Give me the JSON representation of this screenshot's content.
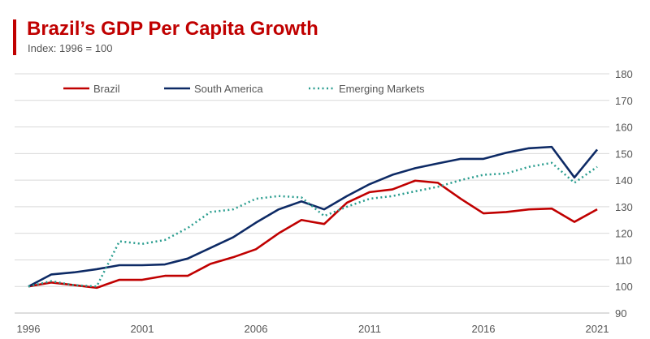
{
  "chart_data": {
    "type": "line",
    "title": "Brazil’s GDP Per Capita Growth",
    "subtitle": "Index: 1996 = 100",
    "x": [
      1996,
      1997,
      1998,
      1999,
      2000,
      2001,
      2002,
      2003,
      2004,
      2005,
      2006,
      2007,
      2008,
      2009,
      2010,
      2011,
      2012,
      2013,
      2014,
      2015,
      2016,
      2017,
      2018,
      2019,
      2020,
      2021
    ],
    "x_ticks": [
      "1996",
      "2001",
      "2006",
      "2011",
      "2016",
      "2021"
    ],
    "y_ticks": [
      "90",
      "100",
      "110",
      "120",
      "130",
      "140",
      "150",
      "160",
      "170",
      "180"
    ],
    "ylim": [
      90,
      180
    ],
    "y_axis_side": "right",
    "grid": true,
    "legend_position": "top",
    "series": [
      {
        "name": "Brazil",
        "color": "#c00000",
        "style": "solid",
        "values": [
          100,
          101.5,
          100.5,
          99.5,
          102.5,
          102.5,
          104,
          104,
          108.5,
          111,
          114,
          120,
          125,
          123.5,
          131.5,
          135.5,
          136.5,
          139.8,
          139,
          133,
          127.5,
          128,
          129,
          129.3,
          124.3,
          129
        ]
      },
      {
        "name": "South America",
        "color": "#0d2a65",
        "style": "solid",
        "values": [
          100,
          104.5,
          105.3,
          106.5,
          108,
          108,
          108.3,
          110.5,
          114.5,
          118.5,
          124,
          129,
          132,
          129,
          134,
          138.5,
          142,
          144.5,
          146.3,
          148,
          148,
          150.3,
          152,
          152.5,
          141,
          151.5
        ]
      },
      {
        "name": "Emerging Markets",
        "color": "#2a9d8f",
        "style": "dotted",
        "values": [
          100,
          102,
          100.5,
          100,
          117,
          116,
          117.5,
          122,
          128,
          129,
          133,
          134,
          133.5,
          126.5,
          130,
          133,
          134,
          135.8,
          137.5,
          140,
          142,
          142.5,
          145,
          146.5,
          139,
          145
        ]
      }
    ]
  }
}
